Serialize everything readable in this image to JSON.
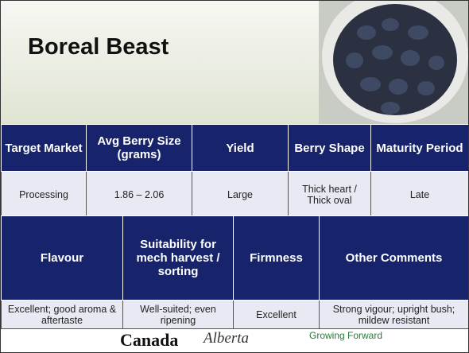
{
  "header": {
    "title": "Boreal Beast"
  },
  "table1": {
    "headers": [
      "Target Market",
      "Avg Berry Size (grams)",
      "Yield",
      "Berry Shape",
      "Maturity Period"
    ],
    "rows": [
      [
        "Processing",
        "1.86 – 2.06",
        "Large",
        "Thick heart / Thick oval",
        "Late"
      ]
    ]
  },
  "table2": {
    "headers": [
      "Flavour",
      "Suitability for mech harvest / sorting",
      "Firmness",
      "Other Comments"
    ],
    "rows": [
      [
        "Excellent; good aroma & aftertaste",
        "Well-suited; even ripening",
        "Excellent",
        "Strong vigour; upright bush; mildew resistant"
      ]
    ]
  },
  "footer": {
    "logos": [
      "Canada",
      "Alberta",
      "Growing Forward"
    ]
  }
}
